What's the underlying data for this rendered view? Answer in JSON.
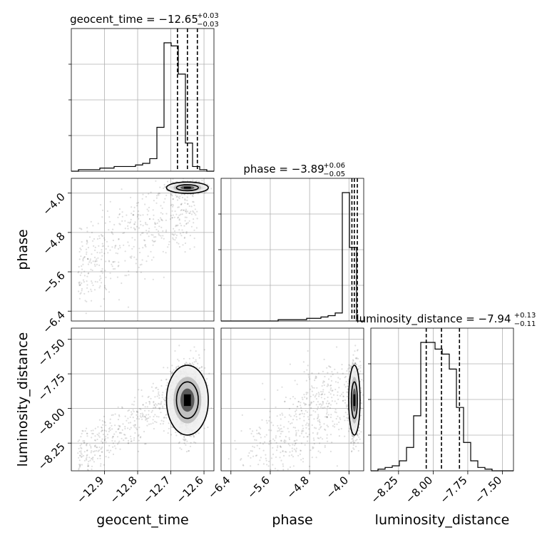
{
  "chart_data": {
    "type": "corner",
    "parameters": [
      "geocent_time",
      "phase",
      "luminosity_distance"
    ],
    "axis_labels": [
      "geocent_time",
      "phase",
      "luminosity_distance"
    ],
    "titles": [
      {
        "name": "geocent_time",
        "prefix": "geocent_time = −12.65",
        "plus": "+0.03",
        "minus": "−0.03"
      },
      {
        "name": "phase",
        "prefix": "phase = −3.89",
        "plus": "+0.06",
        "minus": "−0.05"
      },
      {
        "name": "luminosity_distance",
        "prefix": "luminosity_distance = −7.94",
        "plus": "+0.13",
        "minus": "−0.11"
      }
    ],
    "ranges": [
      [
        -13.0,
        -12.57
      ],
      [
        -6.6,
        -3.7
      ],
      [
        -8.45,
        -7.42
      ]
    ],
    "ticks": [
      [
        -12.9,
        -12.8,
        -12.7,
        -12.6
      ],
      [
        -6.4,
        -5.6,
        -4.8,
        -4.0
      ],
      [
        -8.25,
        -8.0,
        -7.75,
        -7.5
      ]
    ],
    "tick_labels": [
      [
        "−12.9",
        "−12.8",
        "−12.7",
        "−12.6"
      ],
      [
        "−6.4",
        "−5.6",
        "−4.8",
        "−4.0"
      ],
      [
        "−8.25",
        "−8.00",
        "−7.75",
        "−7.50"
      ]
    ],
    "quantiles": [
      [
        -12.68,
        -12.65,
        -12.62
      ],
      [
        -3.94,
        -3.89,
        -3.83
      ],
      [
        -8.05,
        -7.94,
        -7.81
      ]
    ],
    "histograms": [
      {
        "param": "geocent_time",
        "edges_range": [
          -13.0,
          -12.57
        ],
        "counts": [
          0,
          1,
          1,
          1,
          2,
          2,
          3,
          3,
          3,
          4,
          5,
          8,
          28,
          82,
          80,
          62,
          18,
          3,
          1,
          0
        ]
      },
      {
        "param": "phase",
        "edges_range": [
          -6.6,
          -3.7
        ],
        "counts": [
          0,
          0,
          0,
          0,
          0,
          0,
          0,
          0,
          1,
          1,
          1,
          1,
          2,
          2,
          3,
          4,
          6,
          96,
          55,
          0
        ]
      },
      {
        "param": "luminosity_distance",
        "edges_range": [
          -8.45,
          -7.42
        ],
        "counts": [
          0,
          1,
          2,
          3,
          6,
          14,
          33,
          77,
          77,
          73,
          70,
          61,
          38,
          17,
          6,
          2,
          1,
          0,
          0,
          0
        ]
      }
    ],
    "grid": true,
    "plot_style": "2D scatter with density contours and histograms on diagonal"
  }
}
